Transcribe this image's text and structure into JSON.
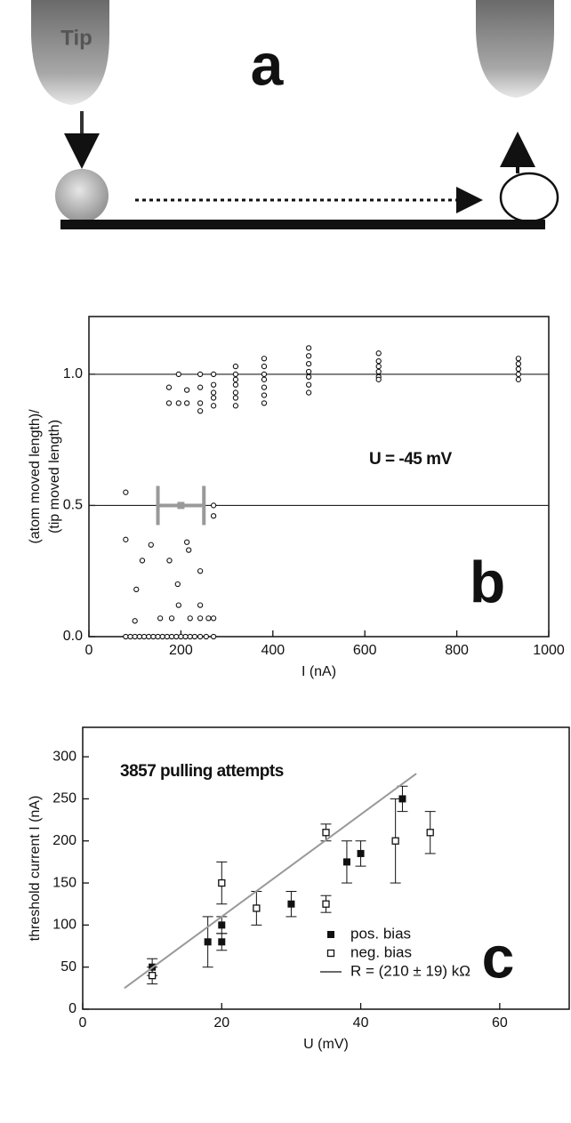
{
  "diagram": {
    "tip_label": "Tip",
    "panel_label": "a"
  },
  "chart_data": [
    {
      "type": "scatter",
      "panel_label": "b",
      "annotation": "U = -45 mV",
      "y_label_lines": [
        "(atom moved length)/",
        "(tip moved length)"
      ],
      "x_label": "I (nA)",
      "xlim": [
        0,
        1000
      ],
      "xticks": [
        0,
        200,
        400,
        600,
        800,
        1000
      ],
      "ylim": [
        0,
        1.22
      ],
      "yticks": [
        {
          "value": 0,
          "label": "0.0"
        },
        0.5,
        {
          "value": 1,
          "label": "1.0"
        }
      ],
      "hlines": [
        0.5,
        1
      ],
      "series": [
        {
          "color": "#111111",
          "marker": "circle-open",
          "x": [
            174,
            174,
            195,
            195,
            213,
            213,
            242,
            242,
            242,
            242,
            271,
            271,
            271,
            271,
            271,
            319,
            319,
            319,
            319,
            319,
            319,
            319,
            381,
            381,
            381,
            381,
            381,
            381,
            381,
            478,
            478,
            478,
            478,
            478,
            478,
            478,
            630,
            630,
            630,
            630,
            630,
            630,
            934,
            934,
            934,
            934,
            934,
            80,
            80,
            80,
            90,
            100,
            100,
            103,
            110,
            116,
            120,
            130,
            135,
            140,
            150,
            155,
            160,
            170,
            175,
            180,
            180,
            190,
            193,
            195,
            200,
            210,
            213,
            217,
            220,
            220,
            230,
            242,
            242,
            242,
            242,
            255,
            260,
            271,
            271,
            271,
            271
          ],
          "values": [
            0.95,
            0.89,
            0.89,
            1.0,
            0.89,
            0.94,
            0.95,
            1.0,
            0.89,
            0.86,
            1.0,
            0.96,
            0.93,
            0.91,
            0.88,
            1.03,
            1.0,
            0.98,
            0.96,
            0.93,
            0.91,
            0.88,
            1.06,
            1.03,
            1.0,
            0.98,
            0.95,
            0.92,
            0.89,
            1.1,
            1.07,
            1.04,
            1.01,
            0.99,
            0.96,
            0.93,
            1.08,
            1.05,
            1.03,
            1.01,
            0.99,
            0.98,
            1.06,
            1.04,
            1.02,
            1.0,
            0.98,
            0.55,
            0.37,
            0,
            0,
            0.06,
            0,
            0.18,
            0,
            0.29,
            0,
            0,
            0.35,
            0,
            0,
            0.07,
            0,
            0,
            0.29,
            0.07,
            0,
            0,
            0.2,
            0.12,
            0,
            0,
            0.36,
            0.33,
            0.07,
            0,
            0,
            0.25,
            0.12,
            0.07,
            0,
            0,
            0.07,
            0.5,
            0.46,
            0.07,
            0
          ]
        },
        {
          "color": "#999999",
          "marker": "square-filled",
          "x": [
            200
          ],
          "values": [
            0.5
          ],
          "xerr": [
            50
          ]
        }
      ]
    },
    {
      "type": "scatter",
      "panel_label": "c",
      "annotation": "3857 pulling attempts",
      "y_label": "threshold current I (nA)",
      "x_label": "U (mV)",
      "xlim": [
        0,
        70
      ],
      "xticks": [
        0,
        20,
        40,
        60
      ],
      "ylim": [
        0,
        335
      ],
      "yticks": [
        0,
        50,
        100,
        150,
        200,
        250,
        300
      ],
      "legend": "lower right",
      "series": [
        {
          "name": "pos. bias",
          "color": "#111111",
          "marker": "square-filled",
          "x": [
            10,
            18,
            20,
            20,
            30,
            38,
            40,
            46
          ],
          "values": [
            50,
            80,
            100,
            80,
            125,
            175,
            185,
            250
          ],
          "errors": [
            10,
            30,
            10,
            10,
            15,
            25,
            15,
            15
          ]
        },
        {
          "name": "neg. bias",
          "color": "#111111",
          "marker": "square-open",
          "x": [
            10,
            20,
            25,
            35,
            35,
            45,
            50
          ],
          "values": [
            40,
            150,
            120,
            210,
            125,
            200,
            210
          ],
          "errors": [
            10,
            25,
            20,
            10,
            10,
            50,
            25
          ]
        },
        {
          "name": "R = (210 ± 19) kΩ",
          "color": "#999999",
          "marker": "line",
          "x": [
            6,
            48
          ],
          "values": [
            25,
            280
          ]
        }
      ]
    }
  ]
}
